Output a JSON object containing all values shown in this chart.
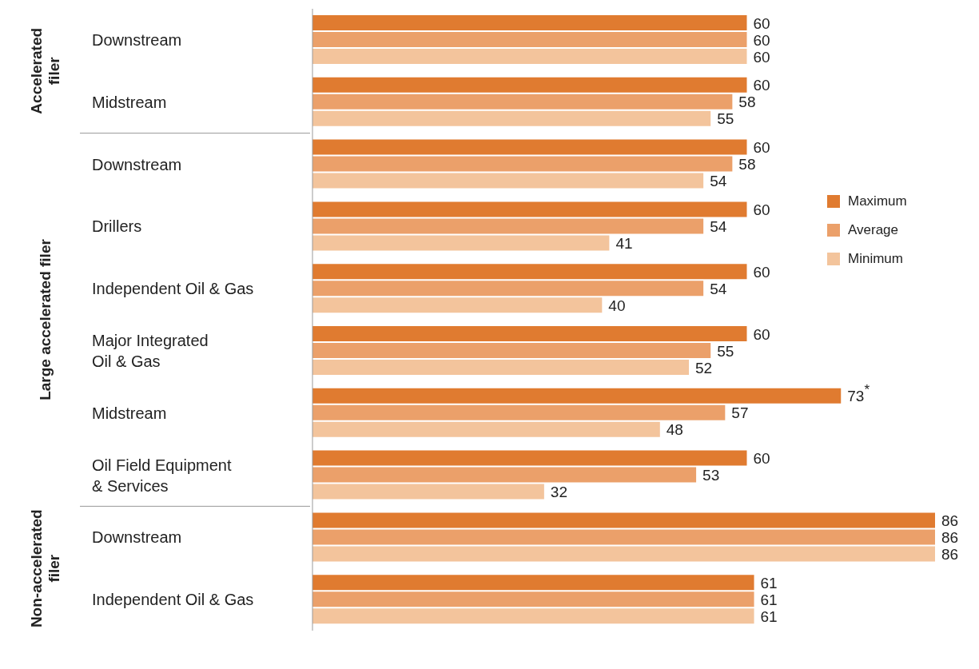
{
  "chart_data": {
    "type": "bar",
    "orientation": "horizontal",
    "categories": [
      "Downstream",
      "Midstream",
      "Downstream",
      "Drillers",
      "Independent Oil & Gas",
      "Major Integrated Oil & Gas",
      "Midstream",
      "Oil Field Equipment & Services",
      "Downstream",
      "Independent Oil & Gas"
    ],
    "series": [
      {
        "name": "Maximum",
        "color": "#e07b30",
        "values": [
          60,
          60,
          60,
          60,
          60,
          60,
          73,
          60,
          86,
          61
        ],
        "value_labels": [
          "60",
          "60",
          "60",
          "60",
          "60",
          "60",
          "73$^{*}$",
          "60",
          "86",
          "61"
        ]
      },
      {
        "name": "Average",
        "color": "#eba06a",
        "values": [
          60,
          58,
          58,
          54,
          54,
          55,
          57,
          53,
          86,
          61
        ],
        "value_labels": [
          "60",
          "58",
          "58",
          "54",
          "54",
          "55",
          "57",
          "53",
          "86",
          "61"
        ]
      },
      {
        "name": "Minimum",
        "color": "#f3c49c",
        "values": [
          60,
          55,
          54,
          41,
          40,
          52,
          48,
          32,
          86,
          61
        ],
        "value_labels": [
          "60",
          "55",
          "54",
          "41",
          "40",
          "52",
          "48",
          "32",
          "86",
          "61"
        ]
      }
    ],
    "annotations": [
      "Accelerated filer",
      "Large accelerated filer",
      "Non-accelerated filer"
    ],
    "legend": "right",
    "grid": false
  }
}
